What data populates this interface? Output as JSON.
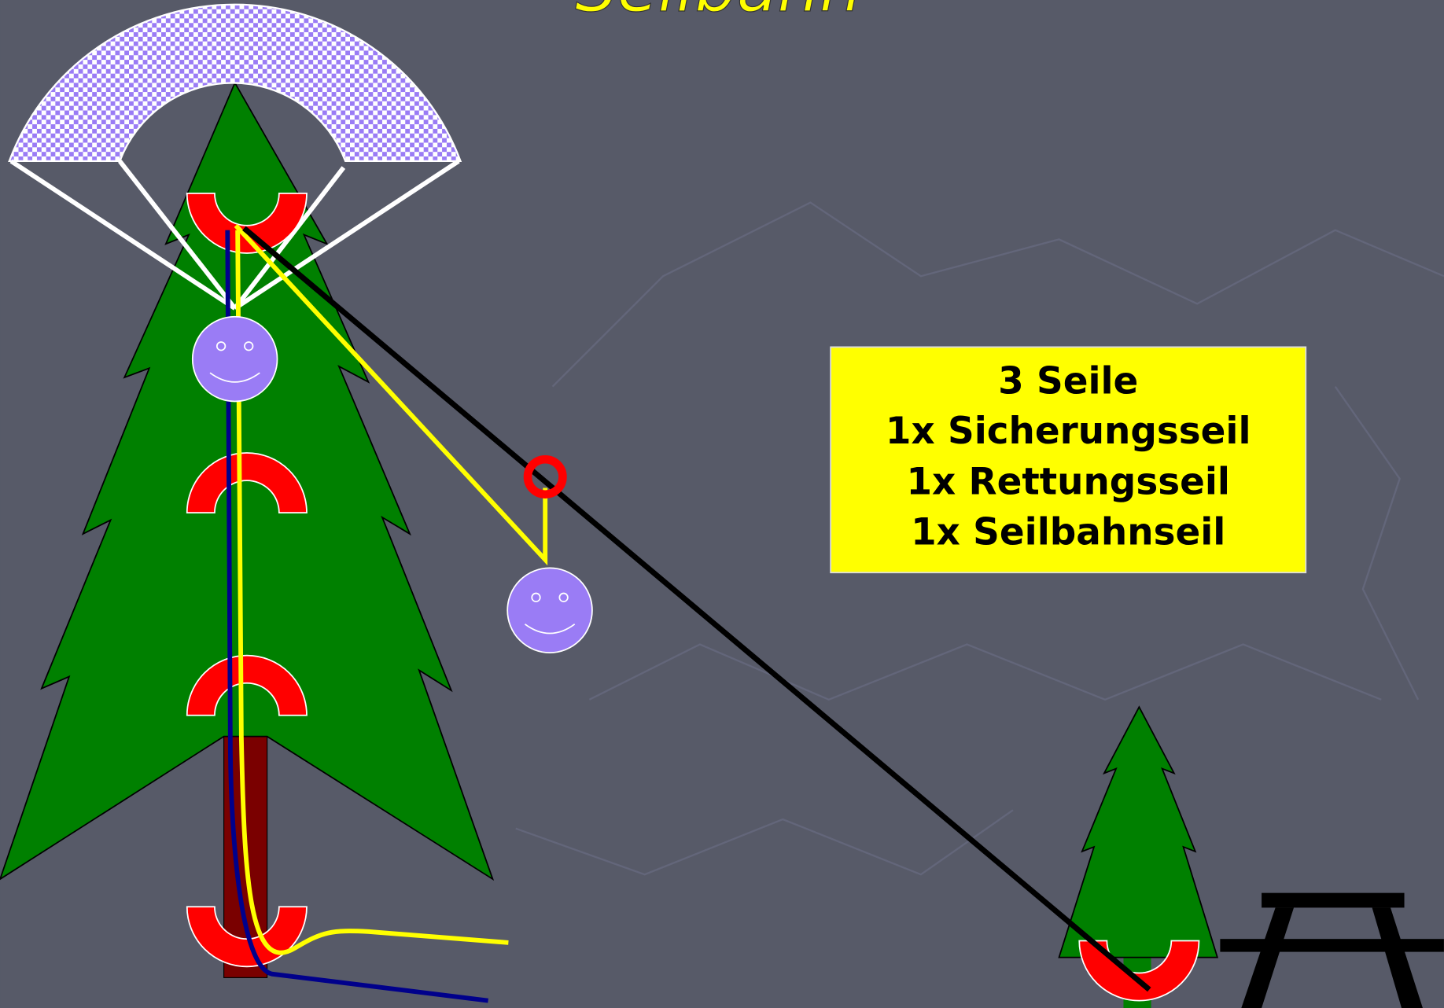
{
  "title": "Seilbahn",
  "info_box": {
    "lines": [
      "3 Seile",
      "1x Sicherungsseil",
      "1x Rettungsseil",
      "1x Seilbahnseil"
    ]
  }
}
